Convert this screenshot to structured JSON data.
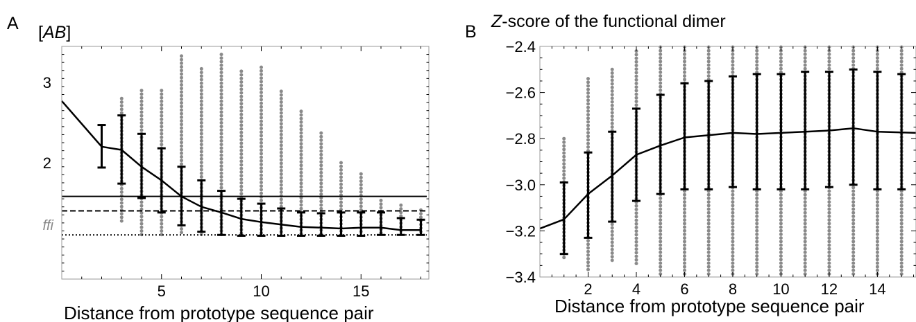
{
  "chart_data": [
    {
      "panel": "A",
      "type": "line",
      "title": "[AB]",
      "xlabel": "Distance from prototype sequence pair",
      "ylabel": "",
      "xlim": [
        0,
        18.4
      ],
      "ylim": [
        0.55,
        3.45
      ],
      "xticks": [
        5,
        10,
        15
      ],
      "yticks": [
        2,
        3
      ],
      "reference_lines": [
        {
          "style": "solid",
          "value": 1.58
        },
        {
          "style": "dashed",
          "value": 1.4
        },
        {
          "style": "dotted",
          "value": 1.1,
          "label": "ffi"
        }
      ],
      "series": [
        {
          "kind": "mean-line",
          "x": [
            0,
            2,
            3,
            4,
            5,
            6,
            7,
            8,
            9,
            10,
            11,
            12,
            13,
            14,
            15,
            16,
            17,
            18
          ],
          "y": [
            2.77,
            2.2,
            2.16,
            1.95,
            1.78,
            1.58,
            1.45,
            1.38,
            1.3,
            1.26,
            1.23,
            1.2,
            1.19,
            1.18,
            1.19,
            1.19,
            1.16,
            1.16
          ]
        },
        {
          "kind": "error-bars",
          "x": [
            2,
            3,
            4,
            5,
            6,
            7,
            8,
            9,
            10,
            11,
            12,
            13,
            14,
            15,
            16,
            17,
            18
          ],
          "low": [
            1.94,
            1.74,
            1.56,
            1.38,
            1.22,
            1.14,
            1.1,
            1.09,
            1.09,
            1.09,
            1.09,
            1.09,
            1.09,
            1.09,
            1.1,
            1.1,
            1.1
          ],
          "high": [
            2.47,
            2.59,
            2.36,
            2.18,
            1.95,
            1.78,
            1.65,
            1.55,
            1.49,
            1.43,
            1.38,
            1.37,
            1.38,
            1.38,
            1.38,
            1.31,
            1.29
          ]
        },
        {
          "kind": "scatter-ranges",
          "x": [
            3,
            4,
            5,
            6,
            7,
            8,
            9,
            10,
            11,
            12,
            13,
            14,
            15,
            16,
            17,
            18
          ],
          "min": [
            1.25,
            1.1,
            1.1,
            1.1,
            1.1,
            1.1,
            1.1,
            1.1,
            1.1,
            1.1,
            1.1,
            1.1,
            1.1,
            1.1,
            1.12,
            1.12
          ],
          "max": [
            2.8,
            2.9,
            2.9,
            3.33,
            3.17,
            3.35,
            3.14,
            3.19,
            2.89,
            2.64,
            2.37,
            2.0,
            1.86,
            1.53,
            1.47,
            1.41
          ]
        }
      ]
    },
    {
      "panel": "B",
      "type": "line",
      "title": "Z-score of the functional dimer",
      "xlabel": "Distance from prototype sequence pair",
      "ylabel": "",
      "xlim": [
        0,
        15.6
      ],
      "ylim": [
        -3.4,
        -2.4
      ],
      "xticks": [
        2,
        4,
        6,
        8,
        10,
        12,
        14
      ],
      "yticks": [
        -3.4,
        -3.2,
        -3.0,
        -2.8,
        -2.6,
        -2.4
      ],
      "series": [
        {
          "kind": "mean-line",
          "x": [
            0,
            1,
            2,
            3,
            4,
            5,
            6,
            7,
            8,
            9,
            10,
            11,
            12,
            13,
            14,
            15.6
          ],
          "y": [
            -3.19,
            -3.15,
            -3.04,
            -2.96,
            -2.87,
            -2.83,
            -2.795,
            -2.785,
            -2.775,
            -2.78,
            -2.775,
            -2.77,
            -2.765,
            -2.755,
            -2.77,
            -2.775
          ]
        },
        {
          "kind": "error-bars",
          "x": [
            1,
            2,
            3,
            4,
            5,
            6,
            7,
            8,
            9,
            10,
            11,
            12,
            13,
            14,
            15
          ],
          "low": [
            -3.3,
            -3.23,
            -3.16,
            -3.07,
            -3.04,
            -3.02,
            -3.02,
            -3.01,
            -3.02,
            -3.02,
            -3.02,
            -3.01,
            -3.0,
            -3.02,
            -3.02
          ],
          "high": [
            -2.99,
            -2.86,
            -2.77,
            -2.67,
            -2.61,
            -2.56,
            -2.55,
            -2.53,
            -2.52,
            -2.52,
            -2.51,
            -2.51,
            -2.5,
            -2.51,
            -2.52
          ]
        },
        {
          "kind": "scatter-ranges",
          "x": [
            1,
            2,
            3,
            4,
            5,
            6,
            7,
            8,
            9,
            10,
            11,
            12,
            13,
            14,
            15
          ],
          "min": [
            -3.32,
            -3.37,
            -3.33,
            -3.35,
            -3.4,
            -3.4,
            -3.4,
            -3.4,
            -3.4,
            -3.4,
            -3.4,
            -3.4,
            -3.4,
            -3.4,
            -3.4
          ],
          "max": [
            -2.8,
            -2.54,
            -2.5,
            -2.42,
            -2.4,
            -2.4,
            -2.4,
            -2.4,
            -2.4,
            -2.4,
            -2.4,
            -2.4,
            -2.4,
            -2.4,
            -2.4
          ]
        }
      ]
    }
  ]
}
